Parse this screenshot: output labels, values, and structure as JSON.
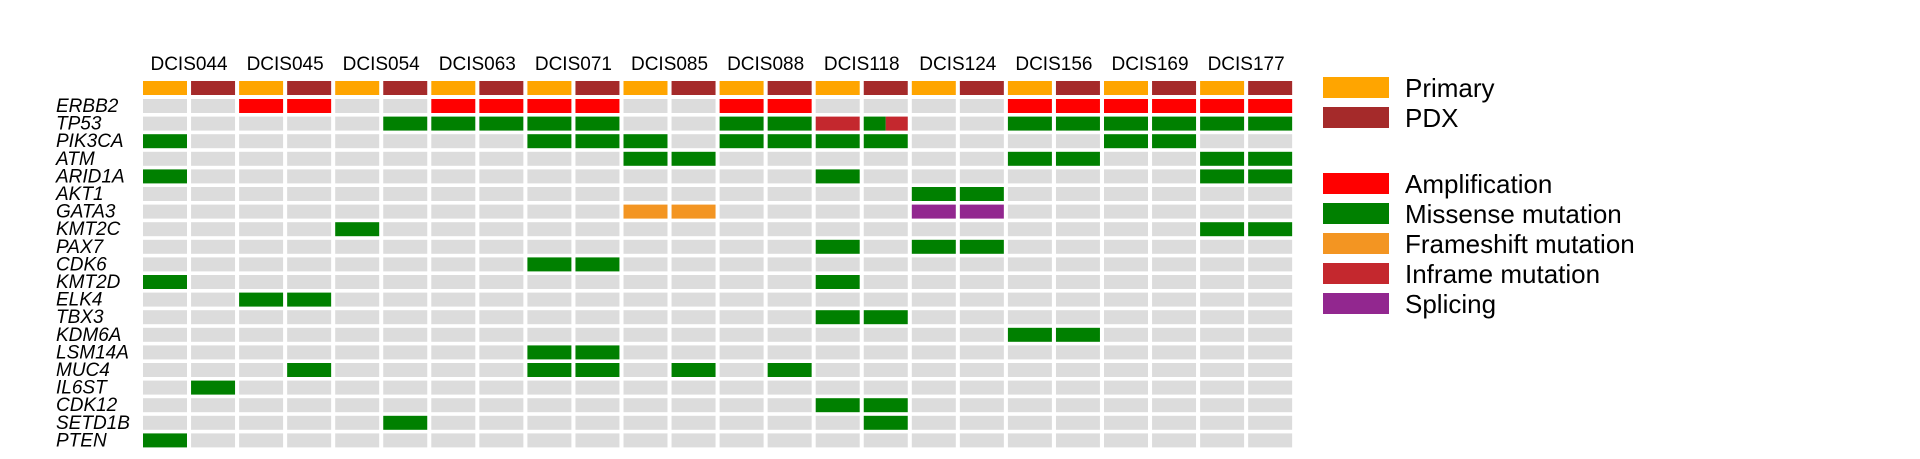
{
  "chart_data": {
    "type": "heatmap",
    "samples": [
      "DCIS044",
      "DCIS045",
      "DCIS054",
      "DCIS063",
      "DCIS071",
      "DCIS085",
      "DCIS088",
      "DCIS118",
      "DCIS124",
      "DCIS156",
      "DCIS169",
      "DCIS177"
    ],
    "columns": [
      "Primary",
      "PDX"
    ],
    "genes": [
      "ERBB2",
      "TP53",
      "PIK3CA",
      "ATM",
      "ARID1A",
      "AKT1",
      "GATA3",
      "KMT2C",
      "PAX7",
      "CDK6",
      "KMT2D",
      "ELK4",
      "TBX3",
      "KDM6A",
      "LSM14A",
      "MUC4",
      "IL6ST",
      "CDK12",
      "SETD1B",
      "PTEN"
    ],
    "colors": {
      "Primary": "#FFA500",
      "PDX": "#A52A2A",
      "Amplification": "#FF0000",
      "Missense mutation": "#008000",
      "Frameshift mutation": "#F39522",
      "Inframe mutation": "#C4282E",
      "Splicing": "#92278F",
      "empty": "#DCDCDC"
    },
    "legend_sample_type": [
      "Primary",
      "PDX"
    ],
    "legend_alterations": [
      "Amplification",
      "Missense mutation",
      "Frameshift mutation",
      "Inframe mutation",
      "Splicing"
    ],
    "matrix": [
      [
        "",
        "",
        "Amplification",
        "Amplification",
        "",
        "",
        "Amplification",
        "Amplification",
        "Amplification",
        "Amplification",
        "",
        "",
        "Amplification",
        "Amplification",
        "",
        "",
        "",
        "",
        "Amplification",
        "Amplification",
        "Amplification",
        "Amplification",
        "Amplification",
        "Amplification"
      ],
      [
        "",
        "",
        "",
        "",
        "",
        "Missense mutation",
        "Missense mutation",
        "Missense mutation",
        "Missense mutation",
        "Missense mutation",
        "",
        "",
        "Missense mutation",
        "Missense mutation",
        "Inframe mutation",
        "Missense mutation+Inframe mutation",
        "",
        "",
        "Missense mutation",
        "Missense mutation",
        "Missense mutation",
        "Missense mutation",
        "Missense mutation",
        "Missense mutation"
      ],
      [
        "Missense mutation",
        "",
        "",
        "",
        "",
        "",
        "",
        "",
        "Missense mutation",
        "Missense mutation",
        "Missense mutation",
        "",
        "Missense mutation",
        "Missense mutation",
        "Missense mutation",
        "Missense mutation",
        "",
        "",
        "",
        "",
        "Missense mutation",
        "Missense mutation",
        "",
        ""
      ],
      [
        "",
        "",
        "",
        "",
        "",
        "",
        "",
        "",
        "",
        "",
        "Missense mutation",
        "Missense mutation",
        "",
        "",
        "",
        "",
        "",
        "",
        "Missense mutation",
        "Missense mutation",
        "",
        "",
        "Missense mutation",
        "Missense mutation"
      ],
      [
        "Missense mutation",
        "",
        "",
        "",
        "",
        "",
        "",
        "",
        "",
        "",
        "",
        "",
        "",
        "",
        "Missense mutation",
        "",
        "",
        "",
        "",
        "",
        "",
        "",
        "Missense mutation",
        "Missense mutation"
      ],
      [
        "",
        "",
        "",
        "",
        "",
        "",
        "",
        "",
        "",
        "",
        "",
        "",
        "",
        "",
        "",
        "",
        "Missense mutation",
        "Missense mutation",
        "",
        "",
        "",
        "",
        "",
        ""
      ],
      [
        "",
        "",
        "",
        "",
        "",
        "",
        "",
        "",
        "",
        "",
        "Frameshift mutation",
        "Frameshift mutation",
        "",
        "",
        "",
        "",
        "Splicing",
        "Splicing",
        "",
        "",
        "",
        "",
        "",
        ""
      ],
      [
        "",
        "",
        "",
        "",
        "Missense mutation",
        "",
        "",
        "",
        "",
        "",
        "",
        "",
        "",
        "",
        "",
        "",
        "",
        "",
        "",
        "",
        "",
        "",
        "Missense mutation",
        "Missense mutation"
      ],
      [
        "",
        "",
        "",
        "",
        "",
        "",
        "",
        "",
        "",
        "",
        "",
        "",
        "",
        "",
        "Missense mutation",
        "",
        "Missense mutation",
        "Missense mutation",
        "",
        "",
        "",
        "",
        "",
        ""
      ],
      [
        "",
        "",
        "",
        "",
        "",
        "",
        "",
        "",
        "Missense mutation",
        "Missense mutation",
        "",
        "",
        "",
        "",
        "",
        "",
        "",
        "",
        "",
        "",
        "",
        "",
        "",
        ""
      ],
      [
        "Missense mutation",
        "",
        "",
        "",
        "",
        "",
        "",
        "",
        "",
        "",
        "",
        "",
        "",
        "",
        "Missense mutation",
        "",
        "",
        "",
        "",
        "",
        "",
        "",
        "",
        ""
      ],
      [
        "",
        "",
        "Missense mutation",
        "Missense mutation",
        "",
        "",
        "",
        "",
        "",
        "",
        "",
        "",
        "",
        "",
        "",
        "",
        "",
        "",
        "",
        "",
        "",
        "",
        "",
        ""
      ],
      [
        "",
        "",
        "",
        "",
        "",
        "",
        "",
        "",
        "",
        "",
        "",
        "",
        "",
        "",
        "Missense mutation",
        "Missense mutation",
        "",
        "",
        "",
        "",
        "",
        "",
        "",
        ""
      ],
      [
        "",
        "",
        "",
        "",
        "",
        "",
        "",
        "",
        "",
        "",
        "",
        "",
        "",
        "",
        "",
        "",
        "",
        "",
        "Missense mutation",
        "Missense mutation",
        "",
        "",
        "",
        ""
      ],
      [
        "",
        "",
        "",
        "",
        "",
        "",
        "",
        "",
        "Missense mutation",
        "Missense mutation",
        "",
        "",
        "",
        "",
        "",
        "",
        "",
        "",
        "",
        "",
        "",
        "",
        "",
        ""
      ],
      [
        "",
        "",
        "",
        "Missense mutation",
        "",
        "",
        "",
        "",
        "Missense mutation",
        "Missense mutation",
        "",
        "Missense mutation",
        "",
        "Missense mutation",
        "",
        "",
        "",
        "",
        "",
        "",
        "",
        "",
        "",
        ""
      ],
      [
        "",
        "Missense mutation",
        "",
        "",
        "",
        "",
        "",
        "",
        "",
        "",
        "",
        "",
        "",
        "",
        "",
        "",
        "",
        "",
        "",
        "",
        "",
        "",
        "",
        ""
      ],
      [
        "",
        "",
        "",
        "",
        "",
        "",
        "",
        "",
        "",
        "",
        "",
        "",
        "",
        "",
        "Missense mutation",
        "Missense mutation",
        "",
        "",
        "",
        "",
        "",
        "",
        "",
        ""
      ],
      [
        "",
        "",
        "",
        "",
        "",
        "Missense mutation",
        "",
        "",
        "",
        "",
        "",
        "",
        "",
        "",
        "",
        "Missense mutation",
        "",
        "",
        "",
        "",
        "",
        "",
        "",
        ""
      ],
      [
        "Missense mutation",
        "",
        "",
        "",
        "",
        "",
        "",
        "",
        "",
        "",
        "",
        "",
        "",
        "",
        "",
        "",
        "",
        "",
        "",
        "",
        "",
        "",
        "",
        ""
      ]
    ]
  }
}
